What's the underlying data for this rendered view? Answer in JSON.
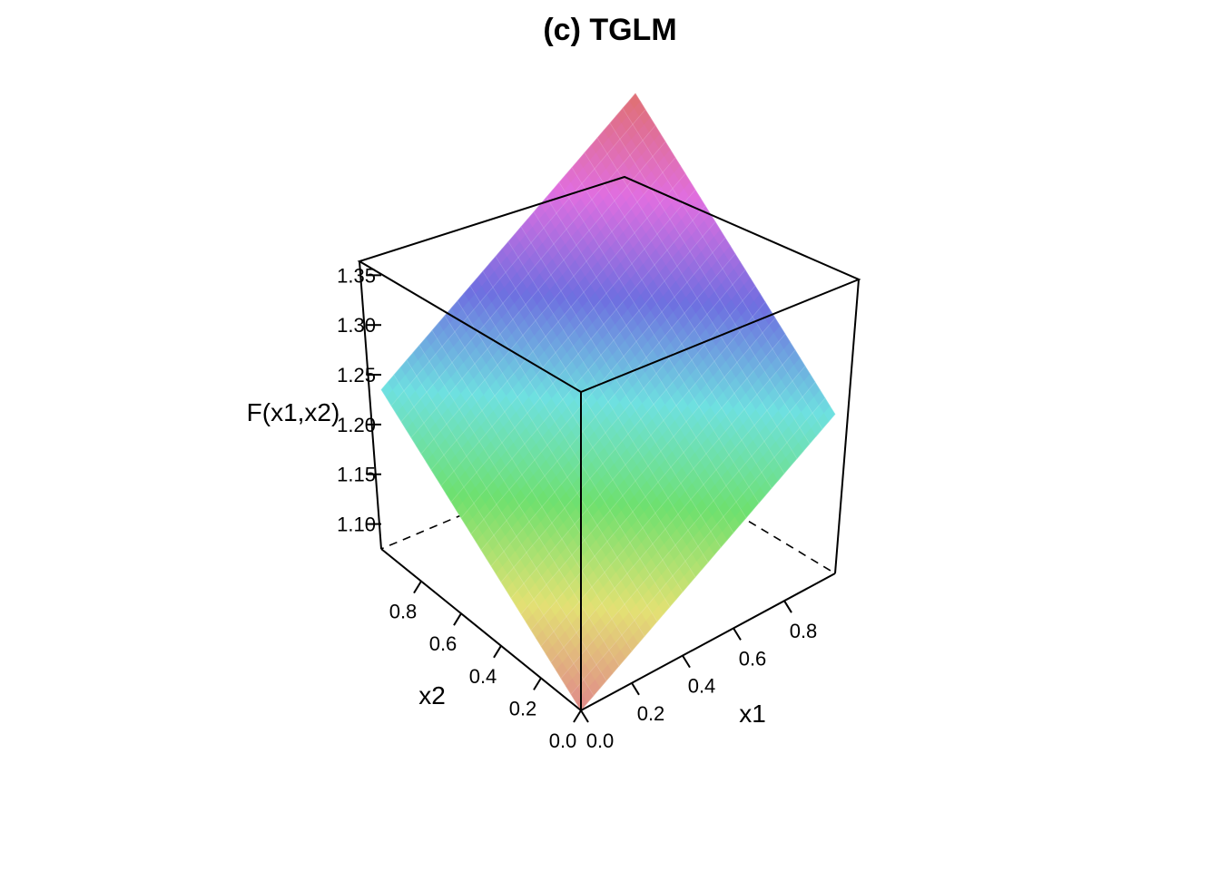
{
  "chart_data": {
    "type": "surface",
    "title": "(c) TGLM",
    "xlabel": "x1",
    "ylabel": "x2",
    "zlabel": "F(x1,x2)",
    "xlim": [
      0,
      1
    ],
    "ylim": [
      0,
      1
    ],
    "zlim": [
      1.075,
      1.395
    ],
    "x_ticks": [
      "0.0",
      "0.2",
      "0.4",
      "0.6",
      "0.8"
    ],
    "y_ticks": [
      "0.0",
      "0.2",
      "0.4",
      "0.6",
      "0.8"
    ],
    "z_ticks": [
      "1.10",
      "1.15",
      "1.20",
      "1.25",
      "1.30",
      "1.35"
    ],
    "surface_corners": [
      {
        "x1": 0,
        "x2": 0,
        "F": 1.075
      },
      {
        "x1": 1,
        "x2": 0,
        "F": 1.235
      },
      {
        "x1": 0,
        "x2": 1,
        "F": 1.235
      },
      {
        "x1": 1,
        "x2": 1,
        "F": 1.395
      }
    ],
    "colormap": [
      "#e0888a",
      "#e3e173",
      "#6ee06e",
      "#6ee0e0",
      "#6e6ee0",
      "#e06ee0",
      "#e07070"
    ]
  }
}
